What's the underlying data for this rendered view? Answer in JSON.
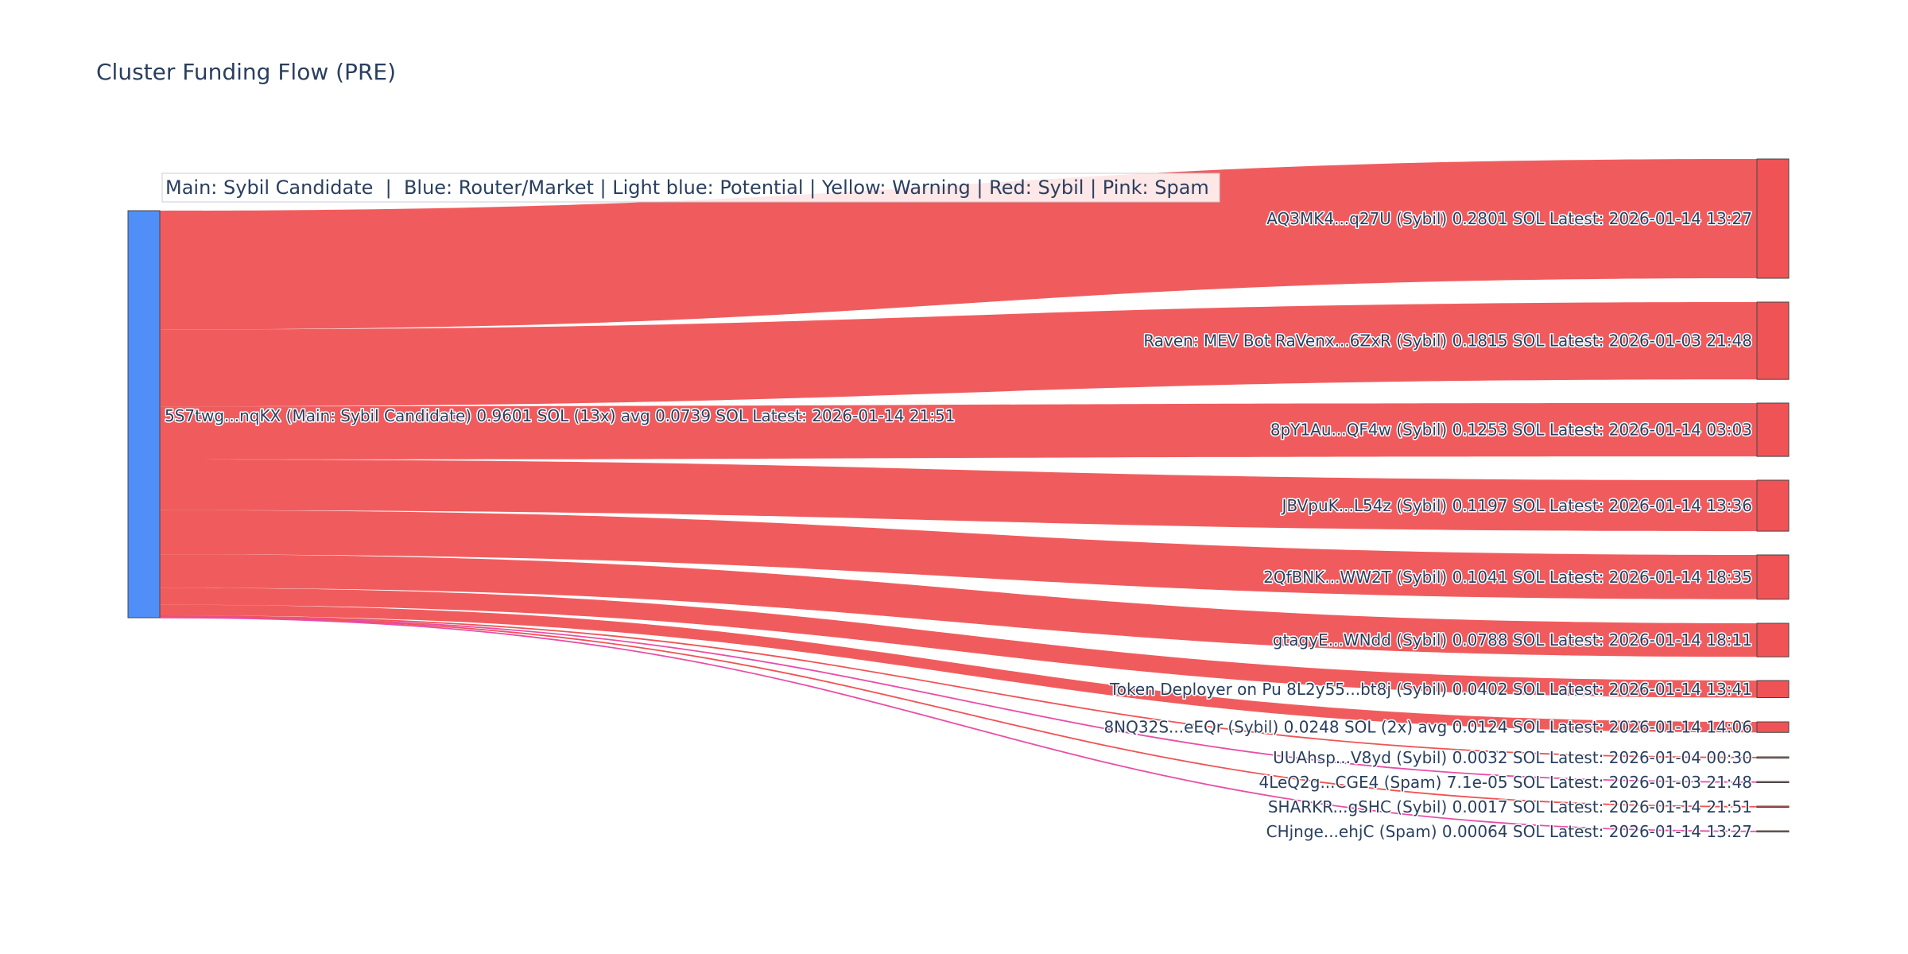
{
  "chart_data": {
    "type": "sankey",
    "title": "Cluster Funding Flow (PRE)",
    "legend_note": "Main: Sybil Candidate  |  Blue: Router/Market | Light blue: Potential | Yellow: Warning | Red: Sybil | Pink: Spam",
    "source": {
      "label": "5S7twg...nqKX (Main: Sybil Candidate) 0.9601 SOL (13x) avg 0.0739 SOL Latest: 2026-01-14 21:51",
      "value": 0.9601,
      "color": "#4f8ff7"
    },
    "targets": [
      {
        "label": "AQ3MK4...q27U (Sybil) 0.2801 SOL Latest: 2026-01-14 13:27",
        "value": 0.2801,
        "category": "Sybil"
      },
      {
        "label": "Raven: MEV Bot RaVenx...6ZxR (Sybil) 0.1815 SOL Latest: 2026-01-03 21:48",
        "value": 0.1815,
        "category": "Sybil"
      },
      {
        "label": "8pY1Au...QF4w (Sybil) 0.1253 SOL Latest: 2026-01-14 03:03",
        "value": 0.1253,
        "category": "Sybil"
      },
      {
        "label": "JBVpuK...L54z (Sybil) 0.1197 SOL Latest: 2026-01-14 13:36",
        "value": 0.1197,
        "category": "Sybil"
      },
      {
        "label": "2QfBNK...WW2T (Sybil) 0.1041 SOL Latest: 2026-01-14 18:35",
        "value": 0.1041,
        "category": "Sybil"
      },
      {
        "label": "gtagyE...WNdd (Sybil) 0.0788 SOL Latest: 2026-01-14 18:11",
        "value": 0.0788,
        "category": "Sybil"
      },
      {
        "label": "Token Deployer on Pu 8L2y55...bt8j (Sybil) 0.0402 SOL Latest: 2026-01-14 13:41",
        "value": 0.0402,
        "category": "Sybil"
      },
      {
        "label": "8NQ32S...eEQr (Sybil) 0.0248 SOL (2x) avg 0.0124 SOL Latest: 2026-01-14 14:06",
        "value": 0.0248,
        "category": "Sybil"
      },
      {
        "label": "UUAhsp...V8yd (Sybil) 0.0032 SOL Latest: 2026-01-04 00:30",
        "value": 0.0032,
        "category": "Sybil"
      },
      {
        "label": "4LeQ2g...CGE4 (Spam) 7.1e-05 SOL Latest: 2026-01-03 21:48",
        "value": 7.1e-05,
        "category": "Spam"
      },
      {
        "label": "SHARKR...gSHC (Sybil) 0.0017 SOL Latest: 2026-01-14 21:51",
        "value": 0.0017,
        "category": "Sybil"
      },
      {
        "label": "CHjnge...ehjC (Spam) 0.00064 SOL Latest: 2026-01-14 13:27",
        "value": 0.00064,
        "category": "Spam"
      }
    ],
    "colors": {
      "Sybil": "#ef5355",
      "Spam": "#e84fa8",
      "node_fill": "#ef5355",
      "source_node": "#4f8ff7",
      "text": "#2a3f5f"
    }
  }
}
